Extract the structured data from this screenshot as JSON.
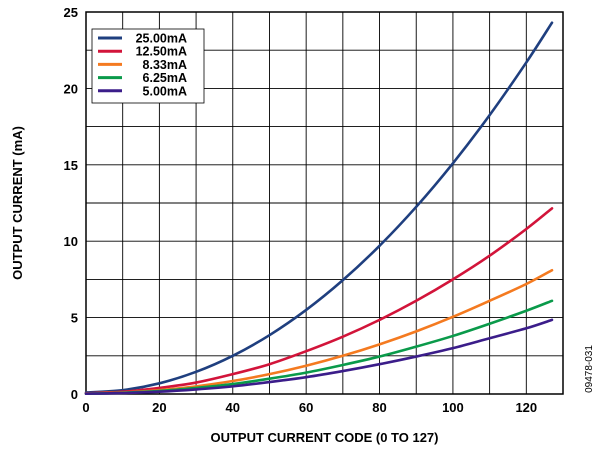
{
  "chart_data": {
    "type": "line",
    "title": "",
    "xlabel": "OUTPUT CURRENT CODE (0 TO 127)",
    "ylabel": "OUTPUT CURRENT (mA)",
    "xlim": [
      0,
      130
    ],
    "ylim": [
      0,
      25
    ],
    "xticks": [
      0,
      20,
      40,
      60,
      80,
      100,
      120
    ],
    "yticks": [
      0,
      5,
      10,
      15,
      20,
      25
    ],
    "grid": true,
    "legend_position": "top-left",
    "figure_id": "09478-031",
    "x": [
      0,
      10,
      20,
      30,
      40,
      50,
      60,
      70,
      80,
      90,
      100,
      110,
      120,
      127
    ],
    "series": [
      {
        "name": "25.00mA",
        "color": "#1f3f7f",
        "values": [
          0.1,
          0.25,
          0.7,
          1.45,
          2.5,
          3.85,
          5.5,
          7.45,
          9.7,
          12.25,
          15.1,
          18.25,
          21.7,
          24.3
        ]
      },
      {
        "name": "12.50mA",
        "color": "#d2143a",
        "values": [
          0.05,
          0.15,
          0.4,
          0.75,
          1.3,
          1.95,
          2.8,
          3.75,
          4.85,
          6.1,
          7.5,
          9.05,
          10.8,
          12.15
        ]
      },
      {
        "name": "8.33mA",
        "color": "#f47a20",
        "values": [
          0.03,
          0.1,
          0.25,
          0.5,
          0.85,
          1.3,
          1.85,
          2.5,
          3.25,
          4.1,
          5.05,
          6.1,
          7.2,
          8.1
        ]
      },
      {
        "name": "6.25mA",
        "color": "#0a9a4a",
        "values": [
          0.02,
          0.08,
          0.2,
          0.4,
          0.65,
          1.0,
          1.4,
          1.9,
          2.45,
          3.1,
          3.8,
          4.6,
          5.45,
          6.1
        ]
      },
      {
        "name": "5.00mA",
        "color": "#3b1d8a",
        "values": [
          0.02,
          0.06,
          0.15,
          0.3,
          0.5,
          0.78,
          1.1,
          1.5,
          1.95,
          2.45,
          3.0,
          3.65,
          4.3,
          4.85
        ]
      }
    ]
  }
}
